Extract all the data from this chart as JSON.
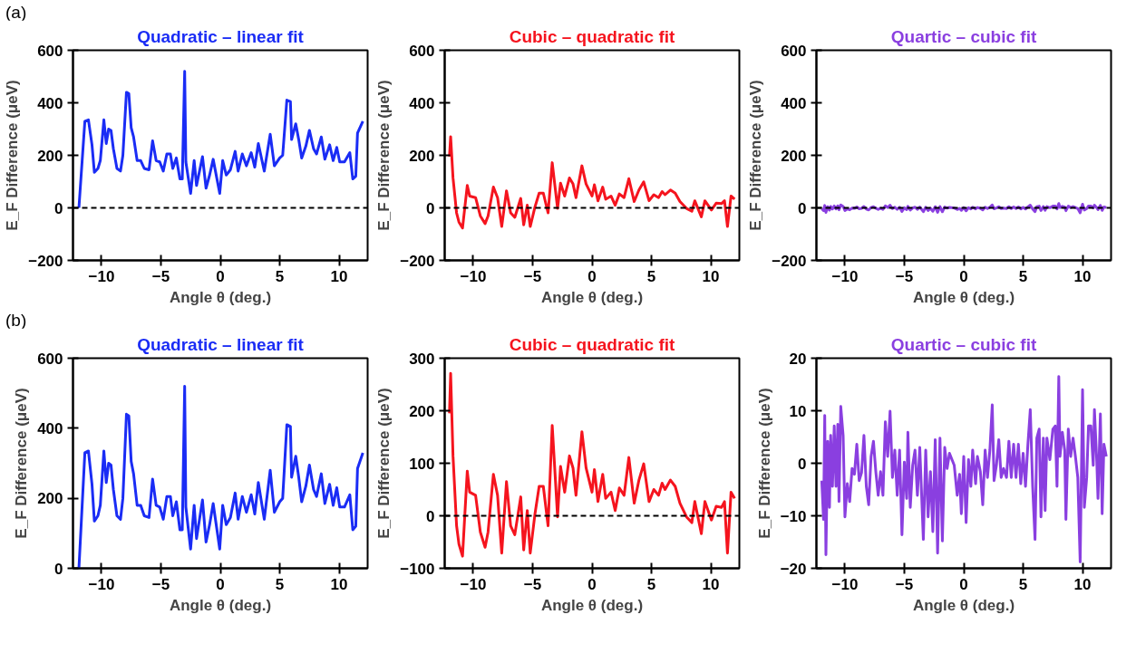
{
  "chart_data": [
    {
      "type": "line",
      "title": "Quadratic – linear fit",
      "xlabel": "Angle θ (deg.)",
      "ylabel": "E_F Difference (μeV)",
      "annotations": [
        "(a)"
      ],
      "xlim": [
        -12.4,
        12.4
      ],
      "xticks": [
        -10,
        -5,
        0,
        5,
        10
      ],
      "ylim": [
        -200,
        600
      ],
      "yticks": [
        -200,
        0,
        200,
        400,
        600
      ],
      "ref_lines": [
        {
          "axis": "y",
          "value": 0,
          "color": "#000000",
          "line_style": "dashed"
        }
      ],
      "series": [
        {
          "color": "#1a2cf5",
          "x": [
            -11.9,
            -11.4,
            -11.1,
            -10.8,
            -10.6,
            -10.3,
            -10.1,
            -9.8,
            -9.6,
            -9.4,
            -9.2,
            -9.0,
            -8.7,
            -8.4,
            -8.2,
            -7.9,
            -7.7,
            -7.5,
            -7.3,
            -7.0,
            -6.7,
            -6.4,
            -6.0,
            -5.7,
            -5.4,
            -5.1,
            -4.8,
            -4.5,
            -4.2,
            -4.0,
            -3.7,
            -3.4,
            -3.2,
            -3.0,
            -2.9,
            -2.5,
            -2.2,
            -2.0,
            -1.5,
            -1.2,
            -0.9,
            -0.6,
            -0.05,
            0.2,
            0.5,
            0.85,
            1.25,
            1.5,
            1.85,
            2.2,
            2.6,
            2.9,
            3.2,
            3.7,
            4.2,
            4.55,
            5.0,
            5.25,
            5.6,
            5.9,
            6.0,
            6.35,
            6.6,
            6.85,
            7.2,
            7.5,
            7.85,
            8.1,
            8.5,
            8.8,
            9.2,
            9.5,
            9.8,
            10.05,
            10.45,
            10.9,
            11.15,
            11.4,
            11.55,
            12.0
          ],
          "values": [
            0,
            330,
            335,
            240,
            135,
            150,
            180,
            335,
            245,
            300,
            295,
            225,
            150,
            140,
            200,
            440,
            435,
            305,
            270,
            180,
            180,
            150,
            145,
            255,
            180,
            175,
            140,
            205,
            205,
            150,
            190,
            110,
            110,
            520,
            175,
            55,
            180,
            85,
            195,
            75,
            125,
            185,
            55,
            180,
            125,
            145,
            215,
            140,
            205,
            160,
            210,
            155,
            245,
            140,
            280,
            160,
            190,
            200,
            410,
            405,
            260,
            320,
            260,
            190,
            235,
            295,
            225,
            205,
            270,
            185,
            240,
            180,
            230,
            175,
            175,
            210,
            110,
            120,
            285,
            330
          ]
        }
      ]
    },
    {
      "type": "line",
      "title": "Cubic – quadratic fit",
      "xlabel": "Angle θ (deg.)",
      "ylabel": "E_F Difference (μeV)",
      "xlim": [
        -12.4,
        12.4
      ],
      "xticks": [
        -10,
        -5,
        0,
        5,
        10
      ],
      "ylim": [
        -200,
        600
      ],
      "yticks": [
        -200,
        0,
        200,
        400,
        600
      ],
      "ref_lines": [
        {
          "axis": "y",
          "value": 0,
          "color": "#000000",
          "line_style": "dashed"
        }
      ],
      "series": [
        {
          "color": "#f5141e",
          "x": [
            -12.0,
            -11.9,
            -11.7,
            -11.4,
            -11.2,
            -10.9,
            -10.5,
            -10.3,
            -9.8,
            -9.4,
            -9.0,
            -8.75,
            -8.3,
            -7.95,
            -7.6,
            -7.2,
            -6.85,
            -6.5,
            -6.0,
            -5.75,
            -5.45,
            -5.2,
            -4.8,
            -4.45,
            -4.1,
            -3.7,
            -3.35,
            -2.9,
            -2.65,
            -2.3,
            -1.9,
            -1.6,
            -1.35,
            -0.85,
            -0.5,
            0,
            0.2,
            0.5,
            0.9,
            1.15,
            1.6,
            1.95,
            2.3,
            2.7,
            3.1,
            3.55,
            3.95,
            4.35,
            4.8,
            5.2,
            5.6,
            5.9,
            6.15,
            6.6,
            7.0,
            7.4,
            7.95,
            8.4,
            8.65,
            9.2,
            9.5,
            10.05,
            10.45,
            10.9,
            11.15,
            11.4,
            11.7,
            12.0
          ],
          "values": [
            195,
            271,
            114,
            -19,
            -54,
            -77,
            85,
            45,
            39,
            -31,
            -60,
            -31,
            79,
            39,
            -71,
            65,
            -19,
            -36,
            36,
            -65,
            10,
            -71,
            4,
            56,
            56,
            -19,
            172,
            -2,
            94,
            45,
            114,
            91,
            39,
            160,
            91,
            45,
            88,
            27,
            79,
            33,
            45,
            10,
            53,
            39,
            111,
            24,
            68,
            99,
            27,
            50,
            39,
            62,
            50,
            68,
            56,
            24,
            -2,
            -13,
            27,
            -34,
            27,
            -8,
            18,
            16,
            27,
            -71,
            45,
            33
          ]
        }
      ]
    },
    {
      "type": "line",
      "title": "Quartic – cubic fit",
      "xlabel": "Angle θ (deg.)",
      "ylabel": "E_F Difference (μeV)",
      "xlim": [
        -12.4,
        12.4
      ],
      "xticks": [
        -10,
        -5,
        0,
        5,
        10
      ],
      "ylim": [
        -200,
        600
      ],
      "yticks": [
        -200,
        0,
        200,
        400,
        600
      ],
      "ref_lines": [
        {
          "axis": "y",
          "value": 0,
          "color": "#000000",
          "line_style": "dashed"
        }
      ],
      "series": [
        {
          "color": "#8a3fe0",
          "x": [
            -11.95,
            -11.8,
            -11.7,
            -11.6,
            -11.45,
            -11.3,
            -11.2,
            -11.05,
            -10.9,
            -10.75,
            -10.6,
            -10.5,
            -10.35,
            -10.15,
            -10.0,
            -9.8,
            -9.6,
            -9.4,
            -9.2,
            -9.0,
            -8.8,
            -8.6,
            -8.4,
            -8.2,
            -8.0,
            -7.8,
            -7.6,
            -7.4,
            -7.2,
            -7.0,
            -6.8,
            -6.6,
            -6.4,
            -6.2,
            -6.0,
            -5.8,
            -5.6,
            -5.4,
            -5.2,
            -5.0,
            -4.8,
            -4.7,
            -4.5,
            -4.3,
            -4.1,
            -3.9,
            -3.7,
            -3.4,
            -3.2,
            -3.0,
            -2.8,
            -2.6,
            -2.4,
            -2.2,
            -2.0,
            -1.8,
            -1.6,
            -1.4,
            -1.2,
            -0.8,
            -0.55,
            -0.35,
            -0.2,
            0,
            0.2,
            0.4,
            0.6,
            0.75,
            1.0,
            1.15,
            1.4,
            1.6,
            1.8,
            2.0,
            2.2,
            2.4,
            2.55,
            2.75,
            2.95,
            3.15,
            3.35,
            3.6,
            3.8,
            4.0,
            4.2,
            4.4,
            4.6,
            4.8,
            5.0,
            5.2,
            5.4,
            5.6,
            5.8,
            6.0,
            6.15,
            6.35,
            6.5,
            6.7,
            6.85,
            7.0,
            7.25,
            7.5,
            7.7,
            7.85,
            8.0,
            8.1,
            8.3,
            8.5,
            8.6,
            8.8,
            9.0,
            9.2,
            9.4,
            9.6,
            9.8,
            10.0,
            10.15,
            10.35,
            10.5,
            10.7,
            10.9,
            11.0,
            11.2,
            11.3,
            11.5,
            11.65,
            11.8,
            12.0
          ],
          "values": [
            -3.3,
            -10.7,
            9.1,
            -17.4,
            4.2,
            -8.4,
            5.3,
            -4.4,
            7.1,
            -4.4,
            7.4,
            -7.3,
            10.8,
            5.3,
            -10.2,
            -3.9,
            -7.3,
            -1.0,
            -2.1,
            3.6,
            -3.3,
            -1.8,
            5.3,
            -4.4,
            -7.9,
            1.3,
            4.2,
            -1.6,
            -6.1,
            -1.6,
            -6.1,
            7.9,
            1.3,
            9.9,
            -2.7,
            2.5,
            -6.1,
            2.5,
            -13.6,
            0.2,
            -6.7,
            5.9,
            -8.4,
            -0.4,
            2.5,
            -6.1,
            3.0,
            -14.5,
            2.5,
            -10.2,
            -1.6,
            -13.0,
            4.5,
            -17.1,
            4.8,
            -14.8,
            3.0,
            -1.0,
            1.9,
            -0.4,
            -6.1,
            -2.1,
            -9.6,
            1.3,
            -11.3,
            0.7,
            -4.4,
            2.5,
            -3.9,
            1.3,
            -1.6,
            -7.9,
            2.5,
            -2.7,
            2.5,
            11.1,
            -3.3,
            -0.4,
            4.5,
            -2.7,
            -1.0,
            -2.7,
            4.2,
            -2.7,
            3.6,
            -2.7,
            3.6,
            -3.9,
            1.9,
            -4.4,
            3.6,
            10.2,
            -4.4,
            -14.5,
            4.8,
            6.5,
            -10.2,
            4.8,
            -9.0,
            4.8,
            0.7,
            6.5,
            7.1,
            -4.4,
            16.5,
            1.3,
            5.9,
            2.5,
            -10.7,
            6.5,
            1.3,
            4.8,
            1.3,
            -2.7,
            -18.8,
            14.0,
            -8.4,
            -2.7,
            7.1,
            7.1,
            -0.4,
            10.2,
            0.2,
            -6.7,
            9.4,
            -9.6,
            3.6,
            1.3
          ]
        }
      ]
    },
    {
      "type": "line",
      "title": "Quadratic – linear fit",
      "xlabel": "Angle θ (deg.)",
      "ylabel": "E_F Difference (μeV)",
      "annotations": [
        "(b)"
      ],
      "xlim": [
        -12.4,
        12.4
      ],
      "xticks": [
        -10,
        -5,
        0,
        5,
        10
      ],
      "ylim": [
        0,
        600
      ],
      "yticks": [
        0,
        200,
        400,
        600
      ],
      "series": [
        {
          "color": "#1a2cf5",
          "x": [
            -11.9,
            -11.4,
            -11.1,
            -10.8,
            -10.6,
            -10.3,
            -10.1,
            -9.8,
            -9.6,
            -9.4,
            -9.2,
            -9.0,
            -8.7,
            -8.4,
            -8.2,
            -7.9,
            -7.7,
            -7.5,
            -7.3,
            -7.0,
            -6.7,
            -6.4,
            -6.0,
            -5.7,
            -5.4,
            -5.1,
            -4.8,
            -4.5,
            -4.2,
            -4.0,
            -3.7,
            -3.4,
            -3.2,
            -3.0,
            -2.9,
            -2.5,
            -2.2,
            -2.0,
            -1.5,
            -1.2,
            -0.9,
            -0.6,
            -0.05,
            0.2,
            0.5,
            0.85,
            1.25,
            1.5,
            1.85,
            2.2,
            2.6,
            2.9,
            3.2,
            3.7,
            4.2,
            4.55,
            5.0,
            5.25,
            5.6,
            5.9,
            6.0,
            6.35,
            6.6,
            6.85,
            7.2,
            7.5,
            7.85,
            8.1,
            8.5,
            8.8,
            9.2,
            9.5,
            9.8,
            10.05,
            10.45,
            10.9,
            11.15,
            11.4,
            11.55,
            12.0
          ],
          "values": [
            0,
            330,
            335,
            240,
            135,
            150,
            180,
            335,
            245,
            300,
            295,
            225,
            150,
            140,
            200,
            440,
            435,
            305,
            270,
            180,
            180,
            150,
            145,
            255,
            180,
            175,
            140,
            205,
            205,
            150,
            190,
            110,
            110,
            520,
            175,
            55,
            180,
            85,
            195,
            75,
            125,
            185,
            55,
            180,
            125,
            145,
            215,
            140,
            205,
            160,
            210,
            155,
            245,
            140,
            280,
            160,
            190,
            200,
            410,
            405,
            260,
            320,
            260,
            190,
            235,
            295,
            225,
            205,
            270,
            185,
            240,
            180,
            230,
            175,
            175,
            210,
            110,
            120,
            285,
            330
          ]
        }
      ]
    },
    {
      "type": "line",
      "title": "Cubic – quadratic fit",
      "xlabel": "Angle θ (deg.)",
      "ylabel": "E_F Difference (μeV)",
      "xlim": [
        -12.4,
        12.4
      ],
      "xticks": [
        -10,
        -5,
        0,
        5,
        10
      ],
      "ylim": [
        -100,
        300
      ],
      "yticks": [
        -100,
        0,
        100,
        200,
        300
      ],
      "ref_lines": [
        {
          "axis": "y",
          "value": 0,
          "color": "#000000",
          "line_style": "dashed"
        }
      ],
      "series": [
        {
          "color": "#f5141e",
          "x": [
            -12.0,
            -11.9,
            -11.7,
            -11.4,
            -11.2,
            -10.9,
            -10.5,
            -10.3,
            -9.8,
            -9.4,
            -9.0,
            -8.75,
            -8.3,
            -7.95,
            -7.6,
            -7.2,
            -6.85,
            -6.5,
            -6.0,
            -5.75,
            -5.45,
            -5.2,
            -4.8,
            -4.45,
            -4.1,
            -3.7,
            -3.35,
            -2.9,
            -2.65,
            -2.3,
            -1.9,
            -1.6,
            -1.35,
            -0.85,
            -0.5,
            0,
            0.2,
            0.5,
            0.9,
            1.15,
            1.6,
            1.95,
            2.3,
            2.7,
            3.1,
            3.55,
            3.95,
            4.35,
            4.8,
            5.2,
            5.6,
            5.9,
            6.15,
            6.6,
            7.0,
            7.4,
            7.95,
            8.4,
            8.65,
            9.2,
            9.5,
            10.05,
            10.45,
            10.9,
            11.15,
            11.4,
            11.7,
            12.0
          ],
          "values": [
            195,
            271,
            114,
            -19,
            -54,
            -77,
            85,
            45,
            39,
            -31,
            -60,
            -31,
            79,
            39,
            -71,
            65,
            -19,
            -36,
            36,
            -65,
            10,
            -71,
            4,
            56,
            56,
            -19,
            172,
            -2,
            94,
            45,
            114,
            91,
            39,
            160,
            91,
            45,
            88,
            27,
            79,
            33,
            45,
            10,
            53,
            39,
            111,
            24,
            68,
            99,
            27,
            50,
            39,
            62,
            50,
            68,
            56,
            24,
            -2,
            -13,
            27,
            -34,
            27,
            -8,
            18,
            16,
            27,
            -71,
            45,
            33
          ]
        }
      ]
    },
    {
      "type": "line",
      "title": "Quartic – cubic fit",
      "xlabel": "Angle θ (deg.)",
      "ylabel": "E_F Difference (μeV)",
      "xlim": [
        -12.4,
        12.4
      ],
      "xticks": [
        -10,
        -5,
        0,
        5,
        10
      ],
      "ylim": [
        -20,
        20
      ],
      "yticks": [
        -20,
        -10,
        0,
        10,
        20
      ],
      "series": [
        {
          "color": "#8a3fe0",
          "x": [
            -11.95,
            -11.8,
            -11.7,
            -11.6,
            -11.45,
            -11.3,
            -11.2,
            -11.05,
            -10.9,
            -10.75,
            -10.6,
            -10.5,
            -10.35,
            -10.15,
            -10.0,
            -9.8,
            -9.6,
            -9.4,
            -9.2,
            -9.0,
            -8.8,
            -8.6,
            -8.4,
            -8.2,
            -8.0,
            -7.8,
            -7.6,
            -7.4,
            -7.2,
            -7.0,
            -6.8,
            -6.6,
            -6.4,
            -6.2,
            -6.0,
            -5.8,
            -5.6,
            -5.4,
            -5.2,
            -5.0,
            -4.8,
            -4.7,
            -4.5,
            -4.3,
            -4.1,
            -3.9,
            -3.7,
            -3.4,
            -3.2,
            -3.0,
            -2.8,
            -2.6,
            -2.4,
            -2.2,
            -2.0,
            -1.8,
            -1.6,
            -1.4,
            -1.2,
            -0.8,
            -0.55,
            -0.35,
            -0.2,
            0,
            0.2,
            0.4,
            0.6,
            0.75,
            1.0,
            1.15,
            1.4,
            1.6,
            1.8,
            2.0,
            2.2,
            2.4,
            2.55,
            2.75,
            2.95,
            3.15,
            3.35,
            3.6,
            3.8,
            4.0,
            4.2,
            4.4,
            4.6,
            4.8,
            5.0,
            5.2,
            5.4,
            5.6,
            5.8,
            6.0,
            6.15,
            6.35,
            6.5,
            6.7,
            6.85,
            7.0,
            7.25,
            7.5,
            7.7,
            7.85,
            8.0,
            8.1,
            8.3,
            8.5,
            8.6,
            8.8,
            9.0,
            9.2,
            9.4,
            9.6,
            9.8,
            10.0,
            10.15,
            10.35,
            10.5,
            10.7,
            10.9,
            11.0,
            11.2,
            11.3,
            11.5,
            11.65,
            11.8,
            12.0
          ],
          "values": [
            -3.3,
            -10.7,
            9.1,
            -17.4,
            4.2,
            -8.4,
            5.3,
            -4.4,
            7.1,
            -4.4,
            7.4,
            -7.3,
            10.8,
            5.3,
            -10.2,
            -3.9,
            -7.3,
            -1.0,
            -2.1,
            3.6,
            -3.3,
            -1.8,
            5.3,
            -4.4,
            -7.9,
            1.3,
            4.2,
            -1.6,
            -6.1,
            -1.6,
            -6.1,
            7.9,
            1.3,
            9.9,
            -2.7,
            2.5,
            -6.1,
            2.5,
            -13.6,
            0.2,
            -6.7,
            5.9,
            -8.4,
            -0.4,
            2.5,
            -6.1,
            3.0,
            -14.5,
            2.5,
            -10.2,
            -1.6,
            -13.0,
            4.5,
            -17.1,
            4.8,
            -14.8,
            3.0,
            -1.0,
            1.9,
            -0.4,
            -6.1,
            -2.1,
            -9.6,
            1.3,
            -11.3,
            0.7,
            -4.4,
            2.5,
            -3.9,
            1.3,
            -1.6,
            -7.9,
            2.5,
            -2.7,
            2.5,
            11.1,
            -3.3,
            -0.4,
            4.5,
            -2.7,
            -1.0,
            -2.7,
            4.2,
            -2.7,
            3.6,
            -2.7,
            3.6,
            -3.9,
            1.9,
            -4.4,
            3.6,
            10.2,
            -4.4,
            -14.5,
            4.8,
            6.5,
            -10.2,
            4.8,
            -9.0,
            4.8,
            0.7,
            6.5,
            7.1,
            -4.4,
            16.5,
            1.3,
            5.9,
            2.5,
            -10.7,
            6.5,
            1.3,
            4.8,
            1.3,
            -2.7,
            -18.8,
            14.0,
            -8.4,
            -2.7,
            7.1,
            7.1,
            -0.4,
            10.2,
            0.2,
            -6.7,
            9.4,
            -9.6,
            3.6,
            1.3
          ]
        }
      ]
    }
  ]
}
